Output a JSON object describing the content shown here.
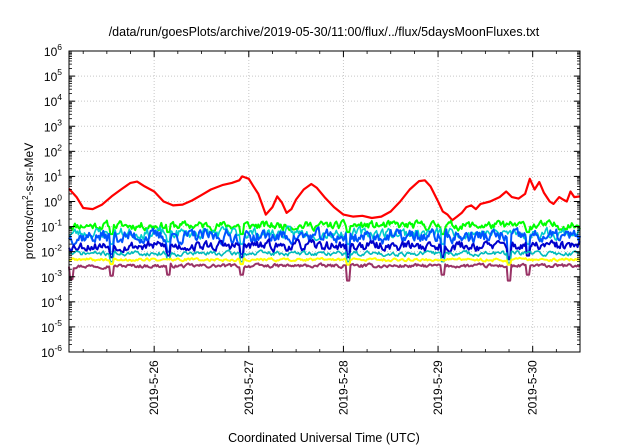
{
  "chart_data": {
    "type": "line",
    "title": "/data/run/goesPlots/archive/2019-05-30/11:00/flux/../flux/5daysMoonFluxes.txt",
    "xlabel": "Coordinated Universal Time (UTC)",
    "ylabel": {
      "base": "protons/cm",
      "sup": "2",
      "rest": "-s-sr-MeV"
    },
    "yscale": "log",
    "ylim_exp": [
      -6,
      6
    ],
    "y_ticks": [
      {
        "exp": "-6"
      },
      {
        "exp": "-5"
      },
      {
        "exp": "-4"
      },
      {
        "exp": "-3"
      },
      {
        "exp": "-2"
      },
      {
        "exp": "-1"
      },
      {
        "exp": "0"
      },
      {
        "exp": "1"
      },
      {
        "exp": "2"
      },
      {
        "exp": "3"
      },
      {
        "exp": "4"
      },
      {
        "exp": "5"
      },
      {
        "exp": "6"
      }
    ],
    "xlim_days": [
      25.1,
      30.5
    ],
    "x_ticks": [
      {
        "label": "2019-5-26",
        "day": 26
      },
      {
        "label": "2019-5-27",
        "day": 27
      },
      {
        "label": "2019-5-28",
        "day": 28
      },
      {
        "label": "2019-5-29",
        "day": 29
      },
      {
        "label": "2019-5-30",
        "day": 30
      }
    ],
    "grid": true,
    "series": [
      {
        "color": "#ff0000",
        "width": 2.2,
        "points": [
          [
            25.1,
            3.2
          ],
          [
            25.18,
            1.5
          ],
          [
            25.25,
            0.55
          ],
          [
            25.35,
            0.5
          ],
          [
            25.45,
            0.75
          ],
          [
            25.55,
            1.6
          ],
          [
            25.65,
            3.0
          ],
          [
            25.75,
            5.5
          ],
          [
            25.82,
            6.2
          ],
          [
            25.9,
            4.0
          ],
          [
            26.0,
            2.5
          ],
          [
            26.1,
            1.0
          ],
          [
            26.2,
            0.7
          ],
          [
            26.3,
            0.75
          ],
          [
            26.4,
            1.1
          ],
          [
            26.5,
            1.8
          ],
          [
            26.6,
            3.0
          ],
          [
            26.72,
            4.5
          ],
          [
            26.82,
            5.5
          ],
          [
            26.9,
            7.0
          ],
          [
            26.93,
            10
          ],
          [
            27.0,
            8.0
          ],
          [
            27.05,
            4.0
          ],
          [
            27.1,
            2.0
          ],
          [
            27.18,
            0.3
          ],
          [
            27.25,
            0.6
          ],
          [
            27.3,
            1.6
          ],
          [
            27.35,
            0.9
          ],
          [
            27.4,
            0.35
          ],
          [
            27.45,
            0.5
          ],
          [
            27.5,
            1.2
          ],
          [
            27.58,
            3.0
          ],
          [
            27.66,
            5.0
          ],
          [
            27.72,
            3.5
          ],
          [
            27.8,
            1.5
          ],
          [
            27.9,
            0.6
          ],
          [
            28.0,
            0.3
          ],
          [
            28.1,
            0.25
          ],
          [
            28.2,
            0.27
          ],
          [
            28.3,
            0.22
          ],
          [
            28.4,
            0.25
          ],
          [
            28.5,
            0.4
          ],
          [
            28.6,
            1.0
          ],
          [
            28.7,
            3.0
          ],
          [
            28.8,
            6.5
          ],
          [
            28.86,
            7.0
          ],
          [
            28.92,
            4.0
          ],
          [
            29.0,
            1.0
          ],
          [
            29.05,
            0.4
          ],
          [
            29.1,
            0.3
          ],
          [
            29.15,
            0.18
          ],
          [
            29.2,
            0.25
          ],
          [
            29.25,
            0.35
          ],
          [
            29.3,
            0.6
          ],
          [
            29.35,
            0.7
          ],
          [
            29.4,
            0.5
          ],
          [
            29.45,
            0.8
          ],
          [
            29.55,
            1.0
          ],
          [
            29.65,
            1.5
          ],
          [
            29.72,
            2.5
          ],
          [
            29.78,
            1.5
          ],
          [
            29.85,
            1.3
          ],
          [
            29.92,
            2.0
          ],
          [
            29.97,
            8.0
          ],
          [
            30.02,
            3.0
          ],
          [
            30.07,
            6.0
          ],
          [
            30.12,
            2.2
          ],
          [
            30.18,
            1.0
          ],
          [
            30.22,
            0.8
          ],
          [
            30.28,
            1.5
          ],
          [
            30.32,
            1.2
          ],
          [
            30.36,
            1.0
          ],
          [
            30.4,
            2.5
          ],
          [
            30.44,
            1.5
          ],
          [
            30.5,
            1.6
          ]
        ]
      },
      {
        "color": "#00ff00",
        "width": 2,
        "center": 0.11,
        "amp": 0.14,
        "seed": 11,
        "dips": [
          [
            25.55,
            0.05
          ],
          [
            26.15,
            0.06
          ],
          [
            26.93,
            0.05
          ],
          [
            28.05,
            0.06
          ],
          [
            29.05,
            0.05
          ],
          [
            29.95,
            0.06
          ]
        ]
      },
      {
        "color": "#00cccc",
        "width": 1.6,
        "center": 0.055,
        "amp": 0.18,
        "seed": 23,
        "dips": [
          [
            25.55,
            0.02
          ],
          [
            26.15,
            0.025
          ],
          [
            26.93,
            0.02
          ],
          [
            28.05,
            0.02
          ],
          [
            29.05,
            0.02
          ],
          [
            29.95,
            0.02
          ]
        ]
      },
      {
        "color": "#0055ff",
        "width": 2,
        "center": 0.04,
        "amp": 0.22,
        "seed": 37,
        "dips": [
          [
            25.55,
            0.008
          ],
          [
            26.15,
            0.01
          ],
          [
            26.93,
            0.008
          ],
          [
            28.05,
            0.008
          ],
          [
            29.05,
            0.007
          ],
          [
            29.75,
            0.006
          ],
          [
            29.95,
            0.01
          ]
        ]
      },
      {
        "color": "#0000cc",
        "width": 2,
        "center": 0.017,
        "amp": 0.16,
        "seed": 53,
        "dips": [
          [
            25.55,
            0.006
          ],
          [
            26.15,
            0.007
          ],
          [
            26.93,
            0.006
          ],
          [
            28.05,
            0.006
          ],
          [
            29.05,
            0.006
          ],
          [
            29.75,
            0.005
          ],
          [
            29.95,
            0.007
          ]
        ]
      },
      {
        "color": "#00bbbb",
        "width": 1.6,
        "center": 0.0085,
        "amp": 0.08,
        "seed": 71,
        "dips": [
          [
            25.55,
            0.004
          ],
          [
            26.15,
            0.005
          ],
          [
            26.93,
            0.004
          ],
          [
            28.05,
            0.004
          ],
          [
            29.05,
            0.004
          ],
          [
            29.75,
            0.0035
          ]
        ]
      },
      {
        "color": "#ffff00",
        "width": 2,
        "center": 0.0048,
        "amp": 0.05,
        "seed": 89,
        "dips": [
          [
            25.55,
            0.0032
          ],
          [
            26.93,
            0.0032
          ],
          [
            28.05,
            0.003
          ],
          [
            29.75,
            0.003
          ]
        ]
      },
      {
        "color": "#993366",
        "width": 2,
        "center": 0.0027,
        "amp": 0.06,
        "seed": 97,
        "dips": [
          [
            25.12,
            0.0008
          ],
          [
            25.55,
            0.0011
          ],
          [
            26.15,
            0.0012
          ],
          [
            26.93,
            0.0012
          ],
          [
            28.05,
            0.0007
          ],
          [
            29.05,
            0.0012
          ],
          [
            29.75,
            0.0007
          ],
          [
            29.95,
            0.0012
          ]
        ]
      }
    ]
  }
}
